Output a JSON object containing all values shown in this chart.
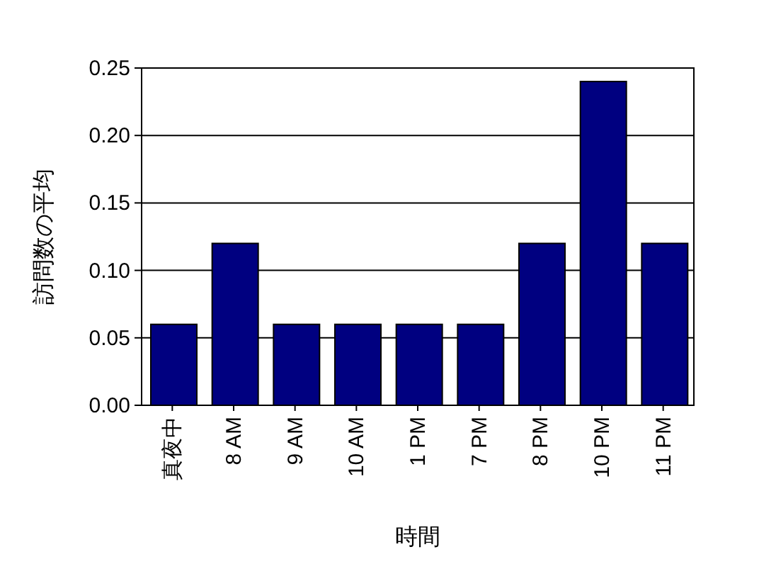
{
  "chart_data": {
    "type": "bar",
    "xlabel": "時間",
    "ylabel": "訪問数の平均",
    "categories": [
      "真夜中",
      "8 AM",
      "9 AM",
      "10 AM",
      "1 PM",
      "7 PM",
      "8 PM",
      "10 PM",
      "11 PM"
    ],
    "values": [
      0.06,
      0.12,
      0.06,
      0.06,
      0.06,
      0.06,
      0.12,
      0.24,
      0.12
    ],
    "color": "#000080",
    "ylim": [
      0,
      0.25
    ],
    "yticks": [
      {
        "value": 0,
        "label": "0.00"
      },
      {
        "value": 0.05,
        "label": "0.05"
      },
      {
        "value": 0.1,
        "label": "0.10"
      },
      {
        "value": 0.15,
        "label": "0.15"
      },
      {
        "value": 0.2,
        "label": "0.20"
      },
      {
        "value": 0.25,
        "label": "0.25"
      }
    ],
    "grid": "y"
  }
}
